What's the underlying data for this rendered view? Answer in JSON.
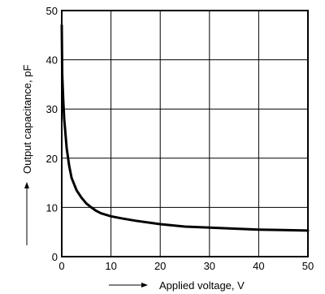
{
  "chart_data": {
    "type": "line",
    "title": "",
    "xlabel": "Applied voltage, V",
    "ylabel": "Output capacitance, pF",
    "xlim": [
      0,
      50
    ],
    "ylim": [
      0,
      50
    ],
    "x_ticks": [
      0,
      10,
      20,
      30,
      40,
      50
    ],
    "y_ticks": [
      0,
      10,
      20,
      30,
      40,
      50
    ],
    "grid": true,
    "legend": "none",
    "series": [
      {
        "color": "#000000",
        "points": [
          [
            0.0,
            47.0
          ],
          [
            0.1,
            37.0
          ],
          [
            0.3,
            32.0
          ],
          [
            0.5,
            28.0
          ],
          [
            1.0,
            22.0
          ],
          [
            1.5,
            18.5
          ],
          [
            2.0,
            16.0
          ],
          [
            3.0,
            13.5
          ],
          [
            4.0,
            12.0
          ],
          [
            5.0,
            10.8
          ],
          [
            6.0,
            10.0
          ],
          [
            7.0,
            9.3
          ],
          [
            8.0,
            8.8
          ],
          [
            10.0,
            8.2
          ],
          [
            12.0,
            7.8
          ],
          [
            15.0,
            7.3
          ],
          [
            20.0,
            6.6
          ],
          [
            25.0,
            6.1
          ],
          [
            30.0,
            5.9
          ],
          [
            35.0,
            5.7
          ],
          [
            40.0,
            5.5
          ],
          [
            45.0,
            5.4
          ],
          [
            50.0,
            5.3
          ]
        ]
      }
    ]
  }
}
